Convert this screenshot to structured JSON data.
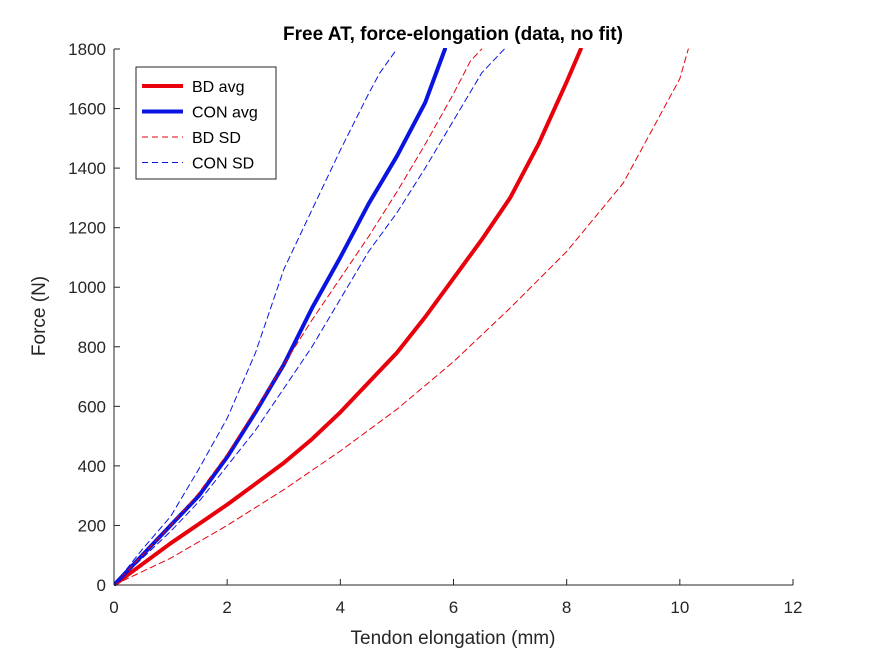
{
  "chart_data": {
    "type": "line",
    "title": "Free AT, force-elongation (data, no fit)",
    "xlabel": "Tendon elongation (mm)",
    "ylabel": "Force (N)",
    "xlim": [
      0,
      12
    ],
    "ylim": [
      0,
      1800
    ],
    "xticks": [
      0,
      2,
      4,
      6,
      8,
      10,
      12
    ],
    "yticks": [
      0,
      200,
      400,
      600,
      800,
      1000,
      1200,
      1400,
      1600,
      1800
    ],
    "grid": false,
    "legend_position": "top-left",
    "series": [
      {
        "name": "BD avg",
        "color": "#e8000b",
        "style": "solid",
        "weight": "thick",
        "x": [
          0,
          0.5,
          1.0,
          1.5,
          2.0,
          2.5,
          3.0,
          3.5,
          4.0,
          4.5,
          5.0,
          5.5,
          6.0,
          6.5,
          7.0,
          7.5,
          8.0,
          8.25
        ],
        "y": [
          0,
          70,
          140,
          205,
          270,
          340,
          410,
          490,
          580,
          680,
          780,
          900,
          1030,
          1160,
          1300,
          1480,
          1690,
          1800
        ]
      },
      {
        "name": "CON avg",
        "color": "#0a14e0",
        "style": "solid",
        "weight": "thick",
        "x": [
          0,
          0.5,
          1.0,
          1.5,
          2.0,
          2.5,
          3.0,
          3.5,
          4.0,
          4.5,
          5.0,
          5.5,
          5.85
        ],
        "y": [
          0,
          100,
          200,
          300,
          430,
          580,
          740,
          930,
          1100,
          1280,
          1440,
          1620,
          1800
        ]
      },
      {
        "name": "BD SD",
        "color": "#e8000b",
        "style": "dashed",
        "weight": "thin",
        "x": [
          0,
          0.5,
          1.0,
          1.5,
          2.0,
          2.5,
          3.0,
          3.5,
          4.0,
          4.5,
          5.0,
          5.5,
          6.0,
          6.3,
          6.5
        ],
        "y": [
          0,
          100,
          200,
          310,
          440,
          590,
          740,
          890,
          1030,
          1170,
          1320,
          1480,
          1650,
          1760,
          1800
        ]
      },
      {
        "name": "BD SD (lower)",
        "color": "#e8000b",
        "style": "dashed",
        "weight": "thin",
        "x": [
          0,
          1.0,
          2.0,
          3.0,
          4.0,
          5.0,
          6.0,
          7.0,
          8.0,
          9.0,
          10.0,
          10.15
        ],
        "y": [
          0,
          90,
          200,
          320,
          450,
          590,
          750,
          930,
          1120,
          1350,
          1700,
          1800
        ]
      },
      {
        "name": "CON SD",
        "color": "#0a14e0",
        "style": "dashed",
        "weight": "thin",
        "x": [
          0,
          0.5,
          1.0,
          1.5,
          2.0,
          2.5,
          3.0,
          3.5,
          4.0,
          4.5,
          4.7,
          5.0
        ],
        "y": [
          0,
          120,
          230,
          390,
          560,
          780,
          1060,
          1260,
          1460,
          1650,
          1720,
          1800
        ]
      },
      {
        "name": "CON SD (lower)",
        "color": "#0a14e0",
        "style": "dashed",
        "weight": "thin",
        "x": [
          0,
          0.5,
          1.0,
          1.5,
          2.0,
          2.5,
          3.0,
          3.5,
          4.0,
          4.5,
          5.0,
          5.5,
          6.0,
          6.5,
          6.9
        ],
        "y": [
          0,
          90,
          180,
          280,
          400,
          520,
          660,
          800,
          960,
          1120,
          1250,
          1400,
          1560,
          1720,
          1800
        ]
      }
    ],
    "legend": [
      {
        "label": "BD avg",
        "color": "#e8000b",
        "style": "solid",
        "weight": "thick"
      },
      {
        "label": "CON avg",
        "color": "#0a14e0",
        "style": "solid",
        "weight": "thick"
      },
      {
        "label": "BD SD",
        "color": "#e8000b",
        "style": "dashed",
        "weight": "thin"
      },
      {
        "label": "CON SD",
        "color": "#0a14e0",
        "style": "dashed",
        "weight": "thin"
      }
    ]
  }
}
